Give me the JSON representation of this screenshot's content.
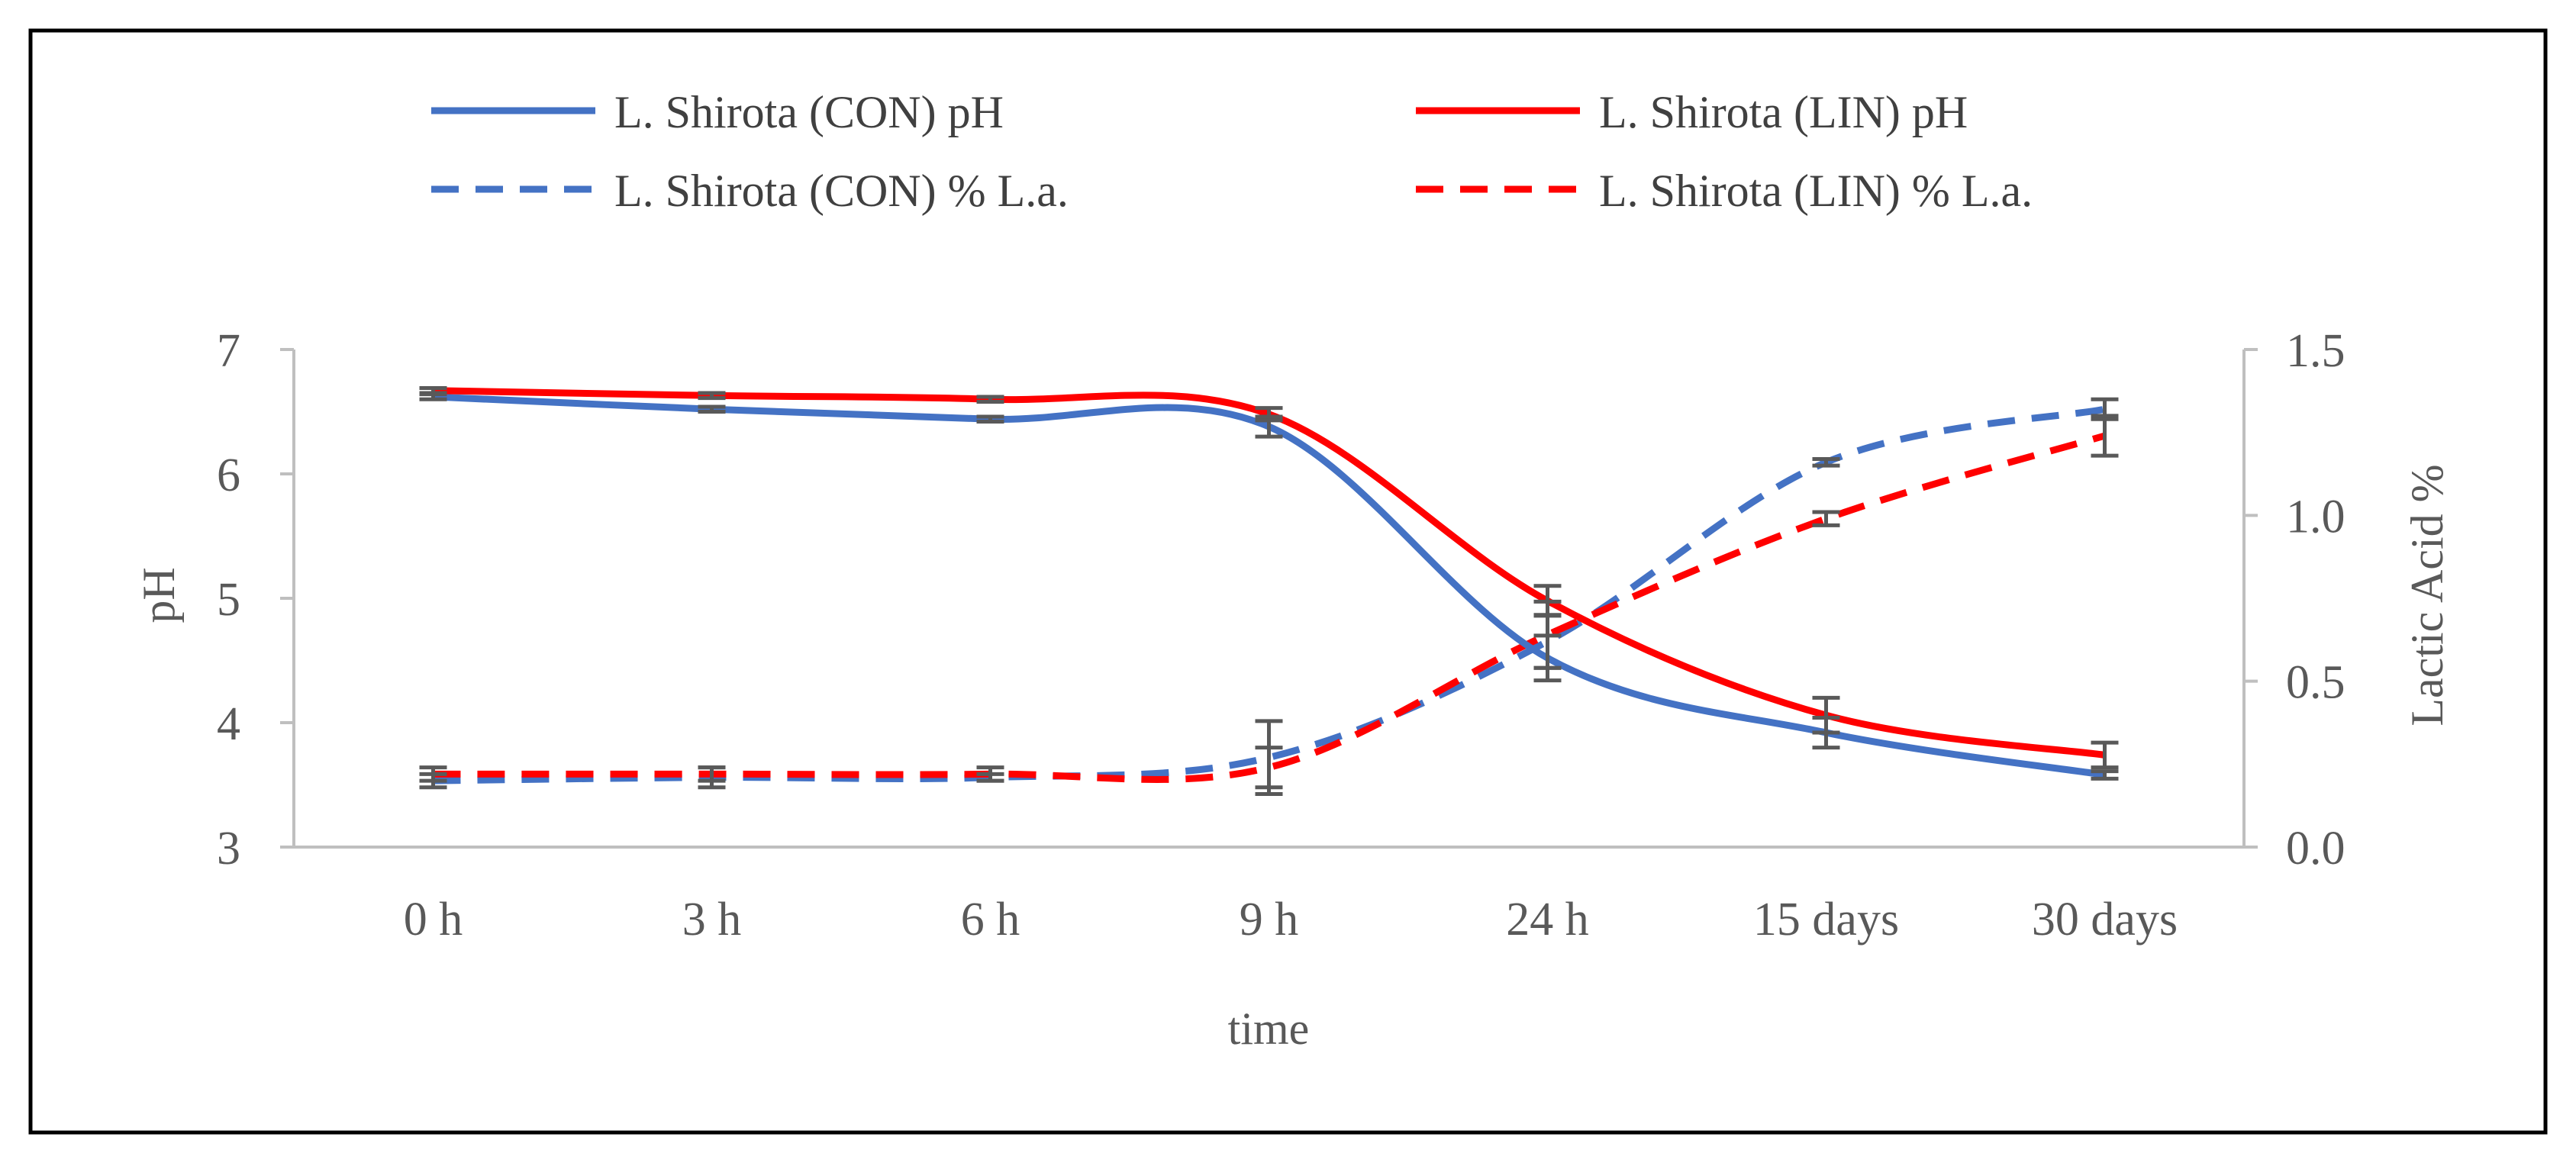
{
  "chart_data": {
    "type": "line",
    "title": "",
    "categories": [
      "0 h",
      "3 h",
      "6 h",
      "9 h",
      "24 h",
      "15 days",
      "30 days"
    ],
    "xlabel": "time",
    "ylabel": "pH",
    "y2label": "Lactic Acid %",
    "ylim": [
      3,
      7
    ],
    "yticks": [
      "3",
      "4",
      "5",
      "6",
      "7"
    ],
    "y2lim": [
      0,
      1.5
    ],
    "y2ticks": [
      "0.0",
      "0.5",
      "1.0",
      "1.5"
    ],
    "grid": false,
    "legend_position": "top",
    "series": [
      {
        "name": "L. Shirota (CON) pH",
        "axis": "left",
        "color": "#4472C4",
        "dash": false,
        "values": [
          6.62,
          6.52,
          6.44,
          6.38,
          4.52,
          3.92,
          3.58
        ],
        "errors": [
          0.02,
          0.02,
          0.02,
          0.08,
          0.18,
          0.12,
          0.03
        ]
      },
      {
        "name": "L. Shirota (LIN) pH",
        "axis": "left",
        "color": "#FF0000",
        "dash": false,
        "values": [
          6.67,
          6.63,
          6.6,
          6.48,
          4.98,
          4.06,
          3.74
        ],
        "errors": [
          0.02,
          0.02,
          0.02,
          0.05,
          0.12,
          0.14,
          0.1
        ]
      },
      {
        "name": "L. Shirota (CON) % L.a.",
        "axis": "right",
        "color": "#4472C4",
        "dash": true,
        "values": [
          0.2,
          0.21,
          0.21,
          0.27,
          0.62,
          1.16,
          1.32
        ],
        "errors": [
          0.02,
          0.03,
          0.01,
          0.11,
          0.08,
          0.01,
          0.03
        ]
      },
      {
        "name": "L. Shirota (LIN) % L.a.",
        "axis": "right",
        "color": "#FF0000",
        "dash": true,
        "values": [
          0.22,
          0.22,
          0.22,
          0.24,
          0.64,
          0.99,
          1.24
        ],
        "errors": [
          0.02,
          0.02,
          0.02,
          0.06,
          0.1,
          0.02,
          0.06
        ]
      }
    ]
  }
}
